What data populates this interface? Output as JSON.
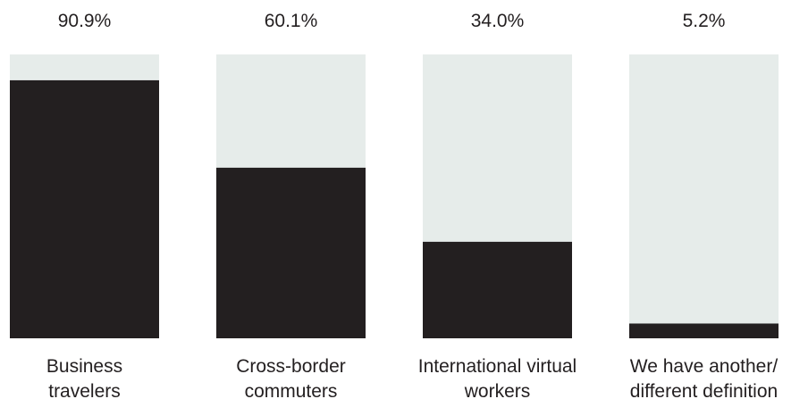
{
  "chart_data": {
    "type": "bar",
    "categories": [
      [
        "Business",
        "travelers"
      ],
      [
        "Cross-border",
        "commuters"
      ],
      [
        "International virtual",
        "workers"
      ],
      [
        "We have another/",
        "different definition"
      ]
    ],
    "values": [
      90.9,
      60.1,
      34.0,
      5.2
    ],
    "value_labels": [
      "90.9%",
      "60.1%",
      "34.0%",
      "5.2%"
    ],
    "ylim": [
      0,
      100
    ],
    "title": "",
    "xlabel": "",
    "ylabel": "",
    "grid": false,
    "colors": {
      "bar": "#231f20",
      "track": "#e6ecea",
      "text": "#231f20"
    }
  }
}
